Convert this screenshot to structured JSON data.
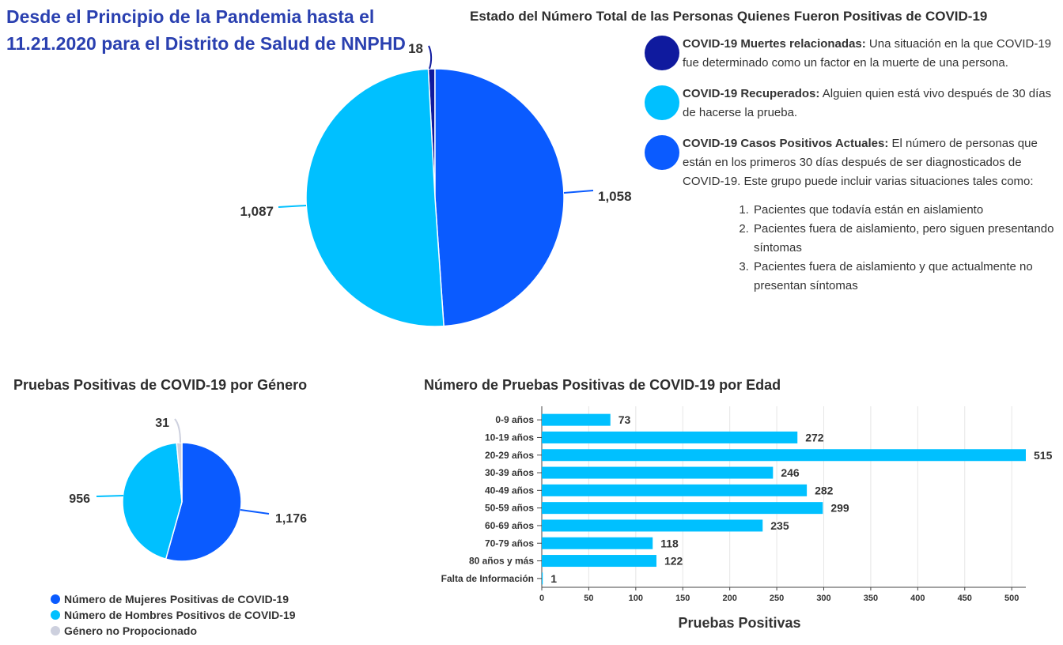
{
  "main_title": "Desde el Principio de la Pandemia hasta el 11.21.2020 para el Distrito de Salud de NNPHD",
  "status": {
    "title": "Estado del Número Total de las Personas Quienes Fueron Positivas de COVID-19",
    "legend": [
      {
        "title": "COVID-19 Muertes relacionadas:",
        "text": "Una situación en la que COVID-19 fue determinado como un factor en la muerte de una persona.",
        "color": "#0f1a9e"
      },
      {
        "title": "COVID-19 Recuperados:",
        "text": "Alguien quien está vivo después de 30 días de hacerse la prueba.",
        "color": "#00c0ff"
      },
      {
        "title": "COVID-19 Casos Positivos Actuales:",
        "text": "El número de personas que están en los primeros 30 días después de ser diagnosticados de COVID-19. Este grupo puede incluir varias situaciones tales como:",
        "color": "#0a5bff",
        "list": [
          "Pacientes que todavía están en aislamiento",
          "Pacientes fuera de aislamiento, pero siguen presentando síntomas",
          "Pacientes fuera de aislamiento y que actualmente no presentan síntomas"
        ]
      }
    ]
  },
  "gender": {
    "title": "Pruebas Positivas de COVID-19 por Género",
    "legend": [
      {
        "label": "Número de Mujeres Positivas de COVID-19",
        "color": "#0a5bff"
      },
      {
        "label": "Número de Hombres Positivos de COVID-19",
        "color": "#00c0ff"
      },
      {
        "label": "Género no Propocionado",
        "color": "#cdd0de"
      }
    ]
  },
  "age": {
    "title": "Número de Pruebas Positivas de COVID-19 por Edad",
    "xlabel": "Pruebas Positivas"
  },
  "chart_data": [
    {
      "type": "pie",
      "title": "Estado del Número Total de las Personas Quienes Fueron Positivas de COVID-19",
      "slices": [
        {
          "label": "COVID-19 Muertes relacionadas",
          "value": 18,
          "display": "18",
          "color": "#0f1a9e"
        },
        {
          "label": "COVID-19 Casos Positivos Actuales",
          "value": 1058,
          "display": "1,058",
          "color": "#0a5bff"
        },
        {
          "label": "COVID-19 Recuperados",
          "value": 1087,
          "display": "1,087",
          "color": "#00c0ff"
        }
      ]
    },
    {
      "type": "pie",
      "title": "Pruebas Positivas de COVID-19 por Género",
      "slices": [
        {
          "label": "Número de Mujeres Positivas de COVID-19",
          "value": 1176,
          "display": "1,176",
          "color": "#0a5bff"
        },
        {
          "label": "Número de Hombres Positivos de COVID-19",
          "value": 956,
          "display": "956",
          "color": "#00c0ff"
        },
        {
          "label": "Género no Propocionado",
          "value": 31,
          "display": "31",
          "color": "#cdd0de"
        }
      ],
      "legend_position": "bottom"
    },
    {
      "type": "bar",
      "orientation": "horizontal",
      "title": "Número de Pruebas Positivas de COVID-19 por Edad",
      "categories": [
        "0-9 años",
        "10-19 años",
        "20-29 años",
        "30-39 años",
        "40-49 años",
        "50-59 años",
        "60-69 años",
        "70-79 años",
        "80 años y más",
        "Falta de Información"
      ],
      "values": [
        73,
        272,
        515,
        246,
        282,
        299,
        235,
        118,
        122,
        1
      ],
      "xlabel": "Pruebas Positivas",
      "xlim": [
        0,
        515
      ],
      "xticks": [
        0,
        50,
        100,
        150,
        200,
        250,
        300,
        350,
        400,
        450,
        500
      ],
      "color": "#00c0ff",
      "grid": true
    }
  ]
}
